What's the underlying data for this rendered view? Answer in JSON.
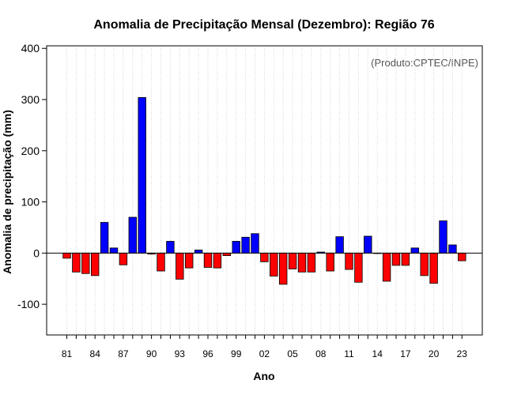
{
  "chart_data": {
    "type": "bar",
    "title": "Anomalia de Precipitação Mensal (Dezembro): Região 76",
    "xlabel": "Ano",
    "ylabel": "Anomalia de precipitação (mm)",
    "credit": "(Produto:CPTEC/INPE)",
    "ylim": [
      -160,
      405
    ],
    "yticks": [
      -100,
      0,
      100,
      200,
      300,
      400
    ],
    "grid": "vertical dotted lines at each year",
    "categories": [
      "81",
      "82",
      "83",
      "84",
      "85",
      "86",
      "87",
      "88",
      "89",
      "90",
      "91",
      "92",
      "93",
      "94",
      "95",
      "96",
      "97",
      "98",
      "99",
      "00",
      "01",
      "02",
      "03",
      "04",
      "05",
      "06",
      "07",
      "08",
      "09",
      "10",
      "11",
      "12",
      "13",
      "14",
      "15",
      "16",
      "17",
      "18",
      "19",
      "20",
      "21",
      "22",
      "23"
    ],
    "xtick_labels": [
      "81",
      "84",
      "87",
      "90",
      "93",
      "96",
      "99",
      "02",
      "05",
      "08",
      "11",
      "14",
      "17",
      "20",
      "23"
    ],
    "values": [
      -10,
      -37,
      -40,
      -44,
      60,
      10,
      -23,
      70,
      304,
      -2,
      -35,
      23,
      -51,
      -29,
      6,
      -28,
      -29,
      -5,
      23,
      31,
      38,
      -17,
      -45,
      -61,
      -31,
      -37,
      -37,
      2,
      -35,
      32,
      -32,
      -57,
      33,
      0,
      -55,
      -24,
      -24,
      10,
      -44,
      -59,
      63,
      16,
      -15
    ],
    "positive_color": "#0000ff",
    "negative_color": "#ff0000"
  }
}
